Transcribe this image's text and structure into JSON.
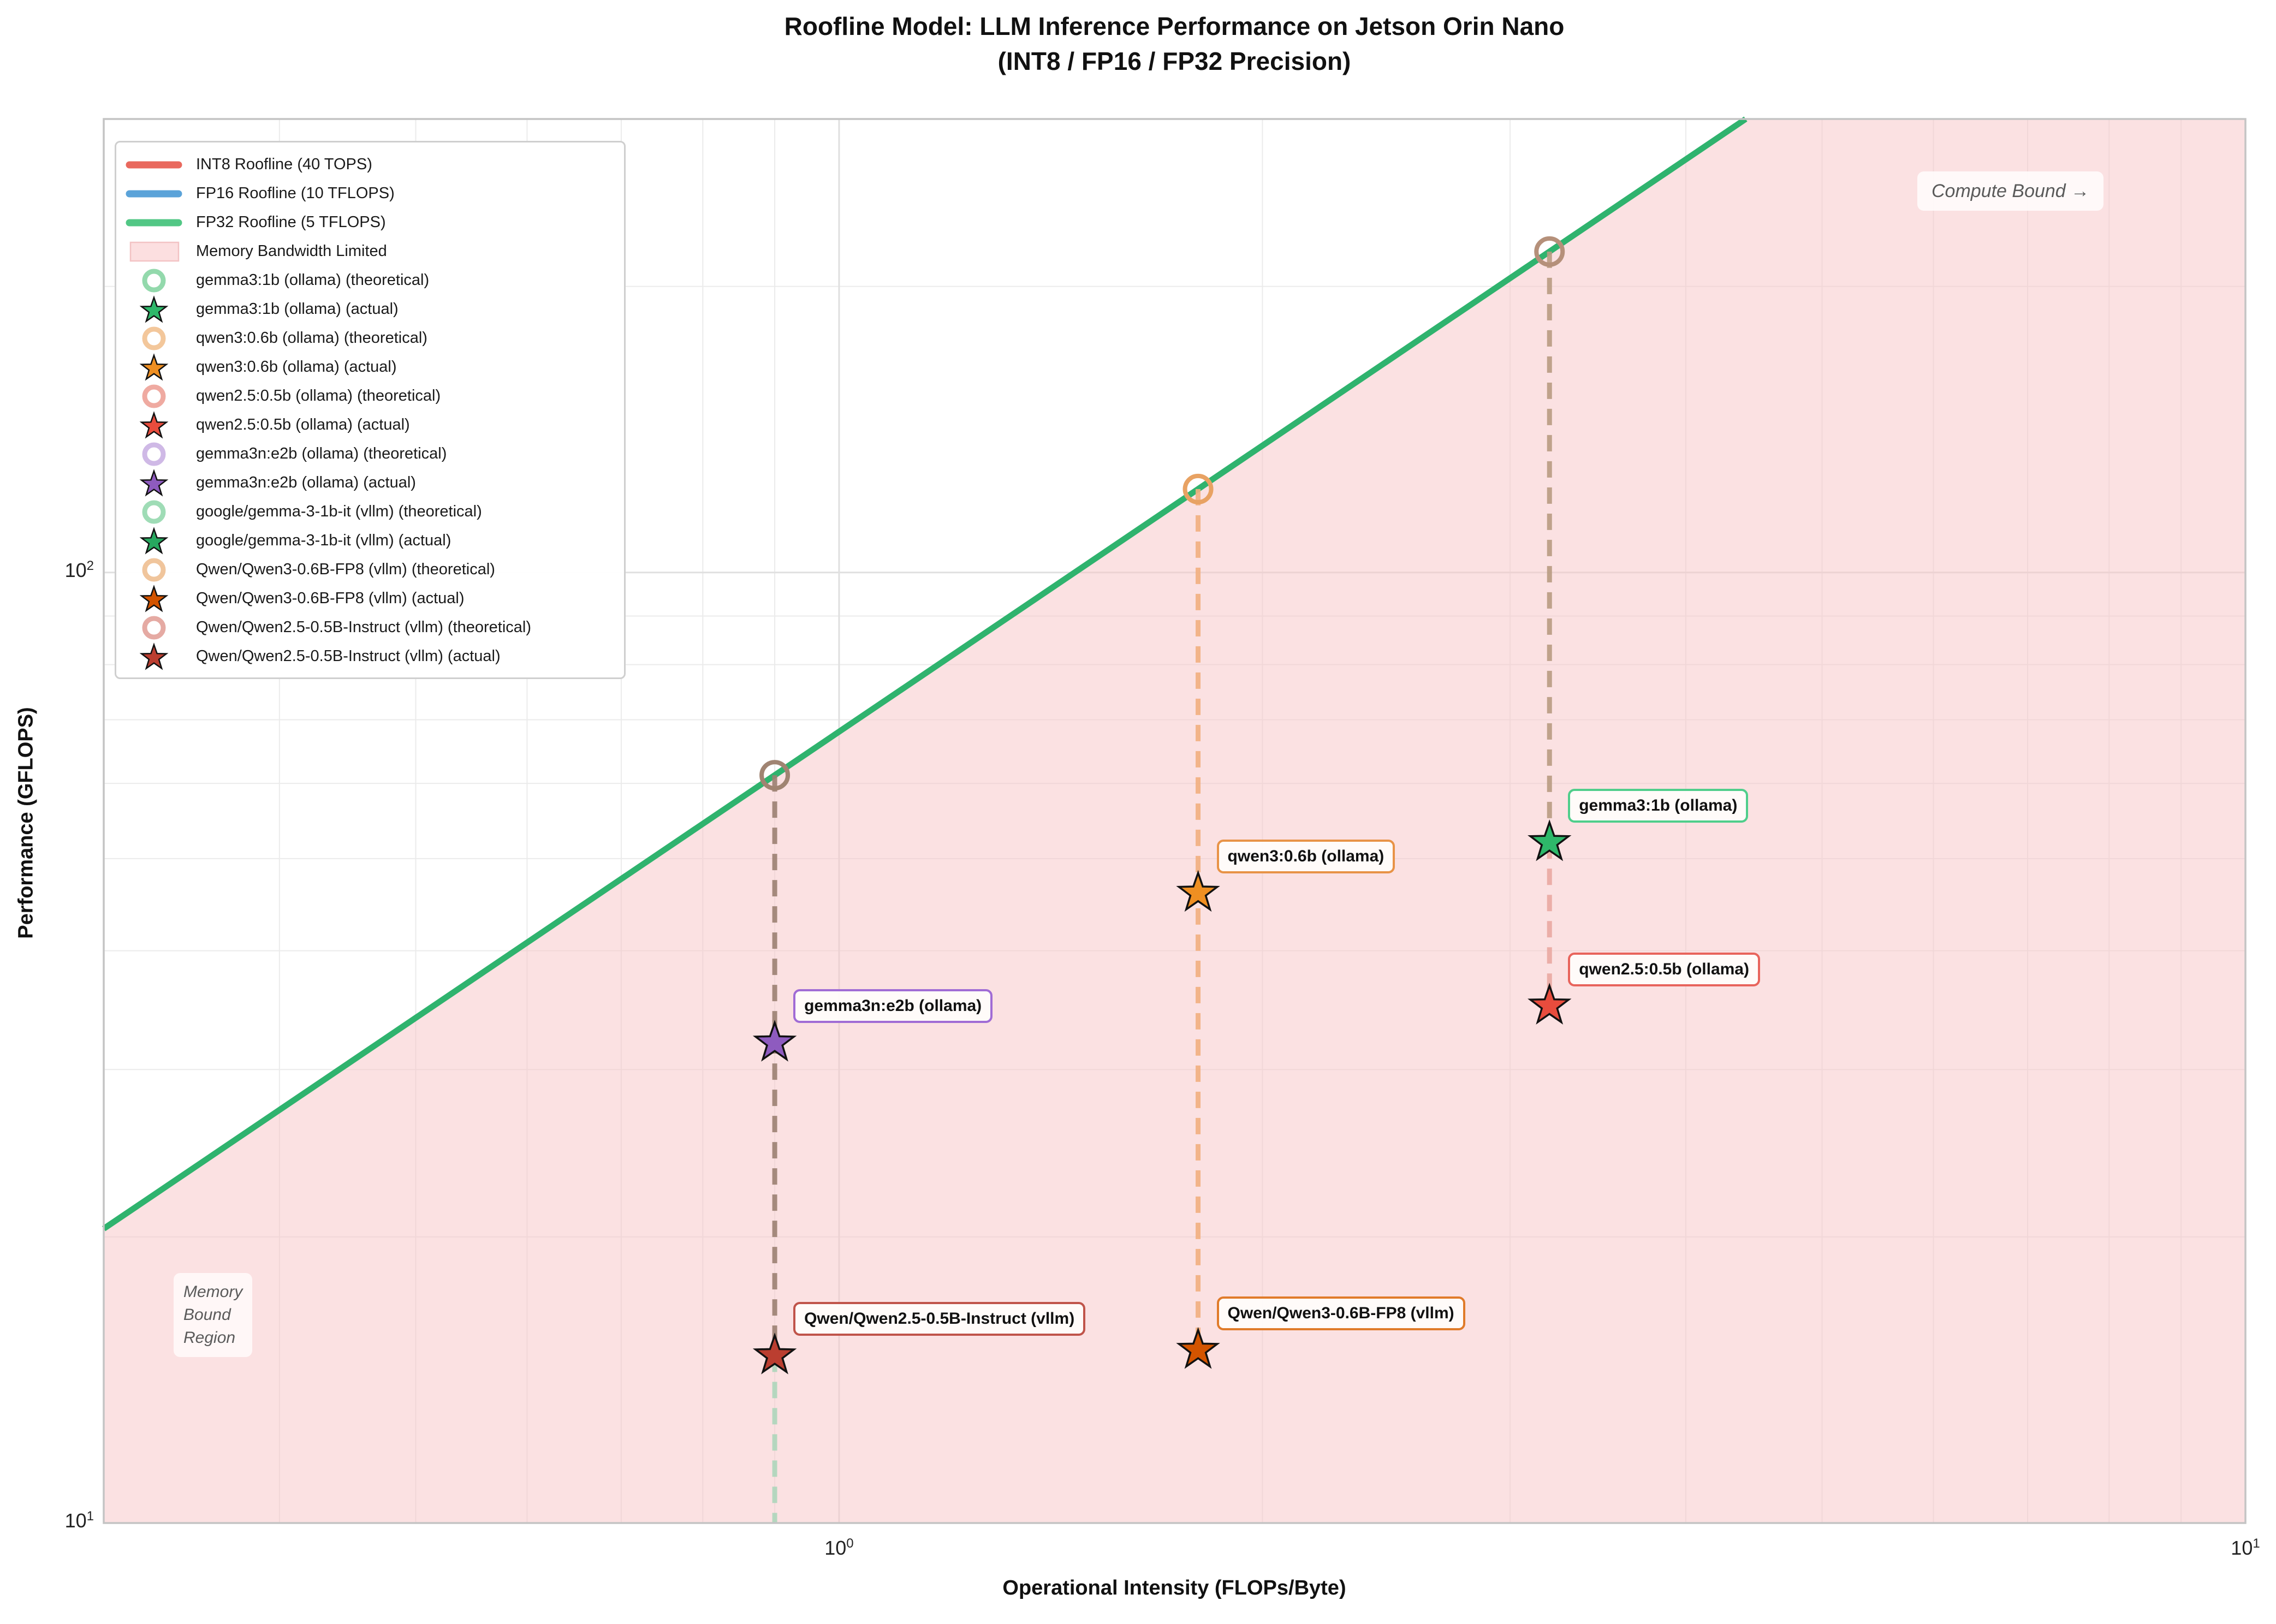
{
  "title": {
    "line1": "Roofline Model: LLM Inference Performance on Jetson Orin Nano",
    "line2": "(INT8 / FP16 / FP32 Precision)"
  },
  "axes": {
    "x_label": "Operational Intensity (FLOPs/Byte)",
    "y_label": "Performance (GFLOPS)",
    "x_scale": "log",
    "y_scale": "log",
    "x_lim": [
      0.3,
      10
    ],
    "y_lim": [
      10,
      300
    ],
    "x_ticks": [
      {
        "base": 10,
        "exp": 0
      },
      {
        "base": 10,
        "exp": 1
      }
    ],
    "y_ticks": [
      {
        "base": 10,
        "exp": 1
      },
      {
        "base": 10,
        "exp": 2
      }
    ]
  },
  "annotations": {
    "compute_bound": "Compute Bound →",
    "memory_region_lines": [
      "Memory",
      "Bound",
      "Region"
    ]
  },
  "legend": {
    "items": [
      {
        "type": "line",
        "color": "#e9695e",
        "label": "INT8 Roofline (40 TOPS)"
      },
      {
        "type": "line",
        "color": "#5ba3d9",
        "label": "FP16 Roofline (10 TFLOPS)"
      },
      {
        "type": "line",
        "color": "#52c785",
        "label": "FP32 Roofline (5 TFLOPS)"
      },
      {
        "type": "patch",
        "color": "#fcdfe0",
        "border": "#f3c3c4",
        "label": "Memory Bandwidth Limited"
      },
      {
        "type": "ring",
        "color": "#93d9ac",
        "label": "gemma3:1b (ollama) (theoretical)"
      },
      {
        "type": "star",
        "color": "#2eb86a",
        "label": "gemma3:1b (ollama) (actual)"
      },
      {
        "type": "ring",
        "color": "#f3c79b",
        "label": "qwen3:0.6b (ollama) (theoretical)"
      },
      {
        "type": "star",
        "color": "#ef8f22",
        "label": "qwen3:0.6b (ollama) (actual)"
      },
      {
        "type": "ring",
        "color": "#efaaa1",
        "label": "qwen2.5:0.5b (ollama) (theoretical)"
      },
      {
        "type": "star",
        "color": "#e84c3d",
        "label": "qwen2.5:0.5b (ollama) (actual)"
      },
      {
        "type": "ring",
        "color": "#cfb9e6",
        "label": "gemma3n:e2b (ollama) (theoretical)"
      },
      {
        "type": "star",
        "color": "#8e5bbf",
        "label": "gemma3n:e2b (ollama) (actual)"
      },
      {
        "type": "ring",
        "color": "#9fdcb6",
        "label": "google/gemma-3-1b-it (vllm) (theoretical)"
      },
      {
        "type": "star",
        "color": "#27a85f",
        "label": "google/gemma-3-1b-it (vllm) (actual)"
      },
      {
        "type": "ring",
        "color": "#f0c59c",
        "label": "Qwen/Qwen3-0.6B-FP8 (vllm) (theoretical)"
      },
      {
        "type": "star",
        "color": "#d35400",
        "label": "Qwen/Qwen3-0.6B-FP8 (vllm) (actual)"
      },
      {
        "type": "ring",
        "color": "#e5aaa3",
        "label": "Qwen/Qwen2.5-0.5B-Instruct (vllm) (theoretical)"
      },
      {
        "type": "star",
        "color": "#bb3e30",
        "label": "Qwen/Qwen2.5-0.5B-Instruct (vllm) (actual)"
      }
    ]
  },
  "chart_data": {
    "type": "scatter",
    "title": "Roofline Model: LLM Inference Performance on Jetson Orin Nano (INT8 / FP16 / FP32 Precision)",
    "xlabel": "Operational Intensity (FLOPs/Byte)",
    "ylabel": "Performance (GFLOPS)",
    "xlim": [
      0.3,
      10
    ],
    "ylim": [
      10,
      300
    ],
    "xscale": "log",
    "yscale": "log",
    "grid": true,
    "legend_position": "upper left",
    "memory_bandwidth_gb_per_s": 68,
    "roofline": {
      "color": "#2fb36e",
      "width": 11
    },
    "rooflines_legend": [
      {
        "name": "INT8 Roofline",
        "peak": "40 TOPS"
      },
      {
        "name": "FP16 Roofline",
        "peak": "10 TFLOPS"
      },
      {
        "name": "FP32 Roofline",
        "peak": "5 TFLOPS"
      }
    ],
    "memory_region_fill": {
      "color": "#f7c6c7",
      "opacity": 0.52
    },
    "points": [
      {
        "label": "gemma3:1b (ollama)",
        "oi": 3.2,
        "actual_gflops": 52,
        "theoretical_gflops": 217.6,
        "star_color": "#2eb86a",
        "label_border": "#4fce8b",
        "labeled": true
      },
      {
        "label": "qwen3:0.6b (ollama)",
        "oi": 1.8,
        "actual_gflops": 46,
        "theoretical_gflops": 122.4,
        "star_color": "#ef8f22",
        "label_border": "#e89347",
        "labeled": true
      },
      {
        "label": "qwen2.5:0.5b (ollama)",
        "oi": 3.2,
        "actual_gflops": 35,
        "theoretical_gflops": 217.6,
        "star_color": "#e84c3d",
        "label_border": "#e8645c",
        "labeled": true
      },
      {
        "label": "gemma3n:e2b (ollama)",
        "oi": 0.9,
        "actual_gflops": 32,
        "theoretical_gflops": 61.2,
        "star_color": "#8e5bbf",
        "label_border": "#a06cd5",
        "labeled": true
      },
      {
        "label": "google/gemma-3-1b-it (vllm)",
        "oi": 0.9,
        "actual_gflops": null,
        "theoretical_gflops": 61.2,
        "star_color": "#27a85f",
        "label_border": "#4fce8b",
        "labeled": false
      },
      {
        "label": "Qwen/Qwen3-0.6B-FP8 (vllm)",
        "oi": 1.8,
        "actual_gflops": 15.2,
        "theoretical_gflops": 122.4,
        "star_color": "#d35400",
        "label_border": "#e07b2a",
        "labeled": true
      },
      {
        "label": "Qwen/Qwen2.5-0.5B-Instruct (vllm)",
        "oi": 0.9,
        "actual_gflops": 15.0,
        "theoretical_gflops": 61.2,
        "star_color": "#bb3e30",
        "label_border": "#c0544a",
        "labeled": true
      }
    ],
    "theoretical_markers": [
      {
        "oi": 0.9,
        "gflops": 61.2,
        "color": "#a08472"
      },
      {
        "oi": 1.8,
        "gflops": 122.4,
        "color": "#e8a263"
      },
      {
        "oi": 3.2,
        "gflops": 217.6,
        "color": "#b5907a"
      }
    ],
    "connectors": [
      {
        "oi": 0.9,
        "segments": [
          {
            "from": 61.2,
            "to": 15.0,
            "color": "#9c8173"
          },
          {
            "from": 15.0,
            "to": 10,
            "color": "#aed6bc"
          }
        ]
      },
      {
        "oi": 1.8,
        "segments": [
          {
            "from": 122.4,
            "to": 15.2,
            "color": "#f2b080"
          }
        ]
      },
      {
        "oi": 3.2,
        "segments": [
          {
            "from": 217.6,
            "to": 52,
            "color": "#b99c82"
          },
          {
            "from": 52,
            "to": 35,
            "color": "#eaa9a2"
          }
        ]
      }
    ]
  },
  "colors": {
    "grid_minor": "#ebebeb",
    "grid_major": "#e0e0e0",
    "spine": "#c4c4c4",
    "tick_text": "#222222"
  }
}
